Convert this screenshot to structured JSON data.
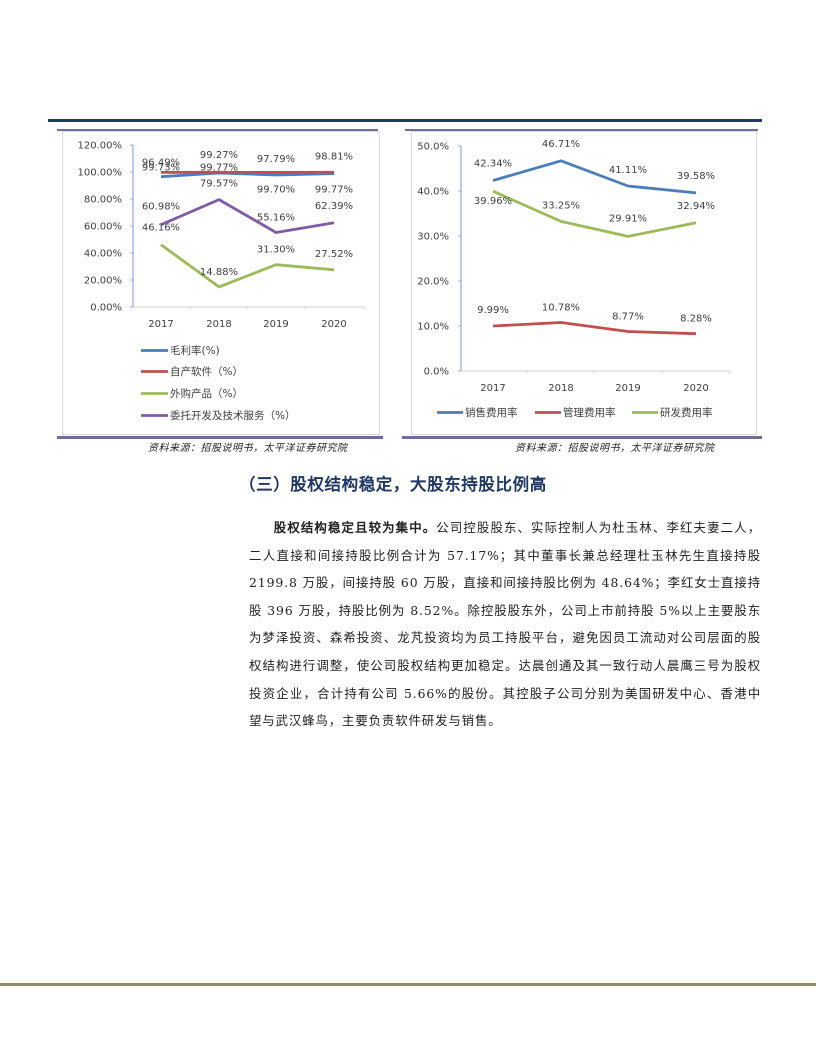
{
  "header": {
    "rule_color": "#1f3b63"
  },
  "figures": {
    "left": {
      "caption": "资料来源：招股说明书，太平洋证券研究院"
    },
    "right": {
      "caption": "资料来源：招股说明书，太平洋证券研究院"
    }
  },
  "section": {
    "title": "（三）股权结构稳定，大股东持股比例高"
  },
  "paragraph": {
    "lead": "股权结构稳定且较为集中。",
    "body": "公司控股股东、实际控制人为杜玉林、李红夫妻二人，二人直接和间接持股比例合计为 57.17%；其中董事长兼总经理杜玉林先生直接持股 2199.8 万股，间接持股 60 万股，直接和间接持股比例为 48.64%；李红女士直接持股 396 万股，持股比例为 8.52%。除控股股东外，公司上市前持股 5%以上主要股东为梦泽投资、森希投资、龙芃投资均为员工持股平台，避免因员工流动对公司层面的股权结构进行调整，使公司股权结构更加稳定。达晨创通及其一致行动人晨鹰三号为股权投资企业，合计持有公司 5.66%的股份。其控股子公司分别为美国研发中心、香港中望与武汉蜂鸟，主要负责软件研发与销售。"
  },
  "footer": {
    "rule_color": "#948c55"
  },
  "chart_data": [
    {
      "type": "line",
      "title": "",
      "xlabel": "",
      "ylabel": "",
      "categories": [
        "2017",
        "2018",
        "2019",
        "2020"
      ],
      "y_ticks": [
        "0.00%",
        "20.00%",
        "40.00%",
        "60.00%",
        "80.00%",
        "100.00%",
        "120.00%"
      ],
      "ylim": [
        0,
        120
      ],
      "grid": false,
      "legend_position": "bottom",
      "series": [
        {
          "name": "毛利率(%)",
          "color": "#4a7ebb",
          "values": [
            96.49,
            99.27,
            97.79,
            98.81
          ],
          "labels": [
            "96.49%",
            "99.27%",
            "97.79%",
            "98.81%"
          ]
        },
        {
          "name": "自产软件（%）",
          "color": "#c0504d",
          "values": [
            99.73,
            99.77,
            99.7,
            99.77
          ],
          "labels": [
            "99.73%",
            "99.77%",
            "99.70%",
            "99.77%"
          ]
        },
        {
          "name": "外购产品（%）",
          "color": "#9bbb59",
          "values": [
            46.16,
            14.88,
            31.3,
            27.52
          ],
          "labels": [
            "46.16%",
            "14.88%",
            "31.30%",
            "27.52%"
          ]
        },
        {
          "name": "委托开发及技术服务（%）",
          "color": "#7f5ba6",
          "values": [
            60.98,
            79.57,
            55.16,
            62.39
          ],
          "labels": [
            "60.98%",
            "79.57%",
            "55.16%",
            "62.39%"
          ]
        }
      ]
    },
    {
      "type": "line",
      "title": "",
      "xlabel": "",
      "ylabel": "",
      "categories": [
        "2017",
        "2018",
        "2019",
        "2020"
      ],
      "y_ticks": [
        "0.0%",
        "10.0%",
        "20.0%",
        "30.0%",
        "40.0%",
        "50.0%"
      ],
      "ylim": [
        0,
        50
      ],
      "grid": false,
      "legend_position": "bottom",
      "series": [
        {
          "name": "销售费用率",
          "color": "#4a7ebb",
          "values": [
            42.34,
            46.71,
            41.11,
            39.58
          ],
          "labels": [
            "42.34%",
            "46.71%",
            "41.11%",
            "39.58%"
          ]
        },
        {
          "name": "管理费用率",
          "color": "#c0504d",
          "values": [
            9.99,
            10.78,
            8.77,
            8.28
          ],
          "labels": [
            "9.99%",
            "10.78%",
            "8.77%",
            "8.28%"
          ]
        },
        {
          "name": "研发费用率",
          "color": "#9bbb59",
          "values": [
            39.96,
            33.25,
            29.91,
            32.94
          ],
          "labels": [
            "39.96%",
            "33.25%",
            "29.91%",
            "32.94%"
          ]
        }
      ]
    }
  ]
}
